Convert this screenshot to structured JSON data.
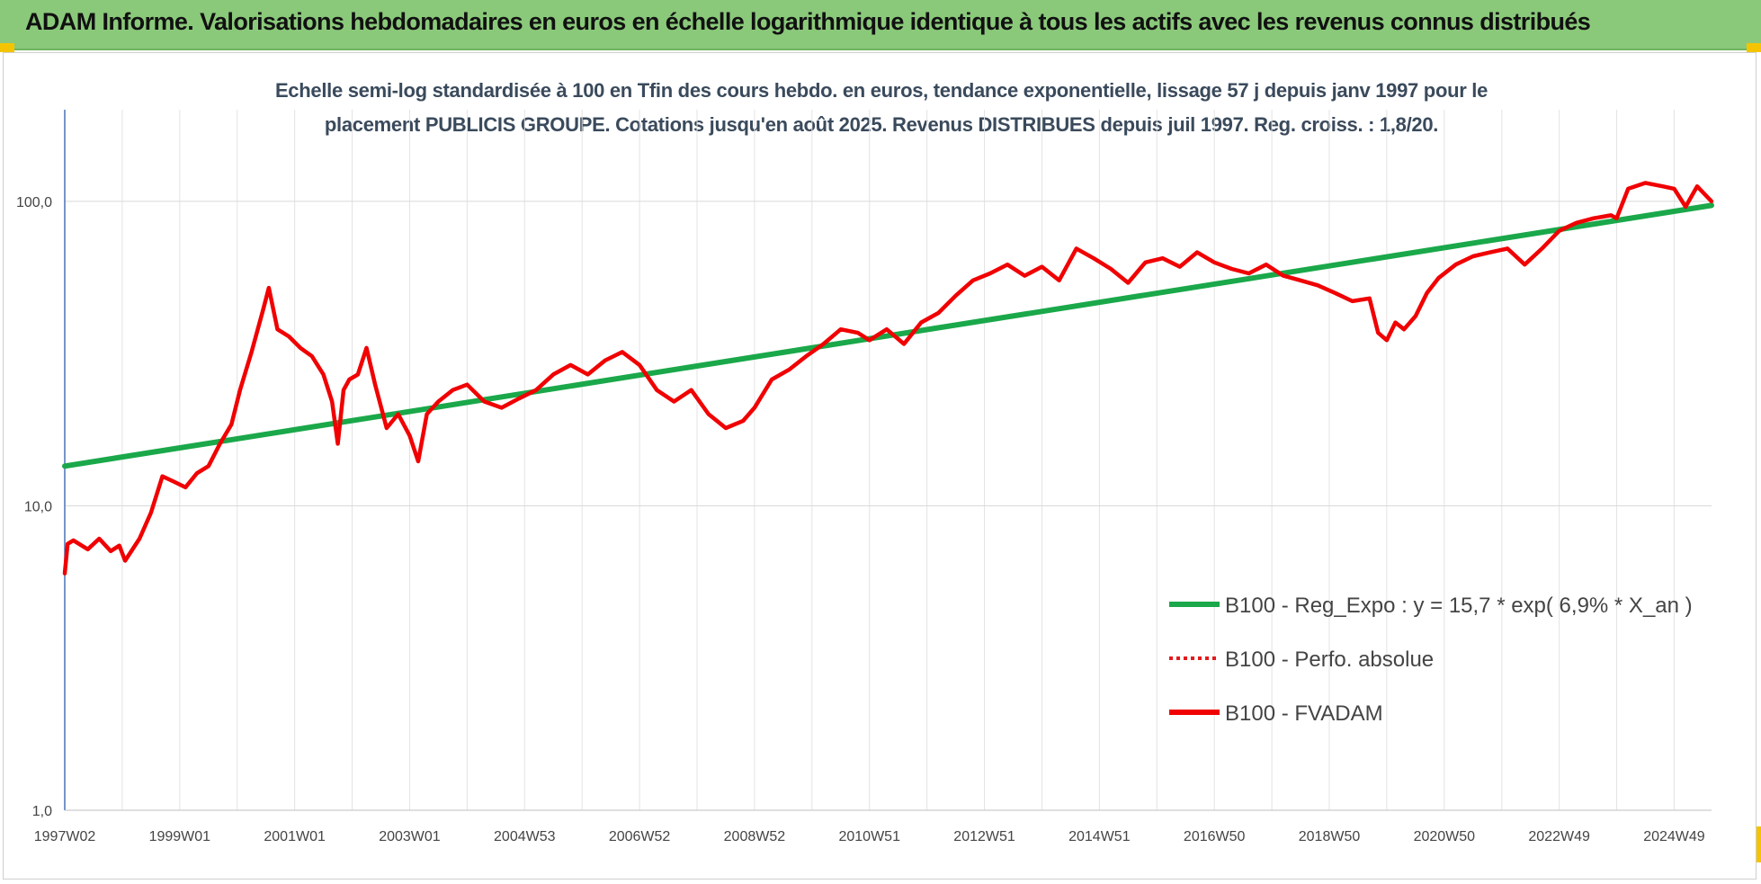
{
  "header": {
    "title": "ADAM Informe. Valorisations hebdomadaires en euros en échelle logarithmique identique à tous les actifs avec les revenus connus distribués"
  },
  "chart_data": {
    "type": "line",
    "title_line1": "Echelle semi-log standardisée à 100 en Tfin des cours hebdo. en euros, tendance exponentielle, lissage 57 j depuis janv 1997 pour le",
    "title_line2": "placement PUBLICIS GROUPE. Cotations jusqu'en août 2025. Revenus DISTRIBUES depuis juil 1997. Reg. croiss. : 1,8/20.",
    "y_scale": "log",
    "ylim": [
      1,
      200
    ],
    "y_ticks": [
      "1,0",
      "10,0",
      "100,0"
    ],
    "y_tick_values": [
      1,
      10,
      100
    ],
    "x_range": [
      1997.0,
      2025.65
    ],
    "x_ticks": [
      "1997W02",
      "1999W01",
      "2001W01",
      "2003W01",
      "2004W53",
      "2006W52",
      "2008W52",
      "2010W51",
      "2012W51",
      "2014W51",
      "2016W50",
      "2018W50",
      "2020W50",
      "2022W49",
      "2024W49"
    ],
    "x_tick_years": [
      1997.0,
      1999.0,
      2001.0,
      2003.0,
      2005.0,
      2007.0,
      2009.0,
      2011.0,
      2013.0,
      2015.0,
      2017.0,
      2019.0,
      2021.0,
      2023.0,
      2025.0
    ],
    "grid": true,
    "legend_position": "right",
    "series": [
      {
        "name": "B100 - Reg_Expo : y = 15,7 * exp( 6,9% *  X_an )",
        "color": "#1aa84a",
        "style": "solid",
        "x": [
          1997.0,
          2025.65
        ],
        "y": [
          13.5,
          97
        ]
      },
      {
        "name": "B100 - Perfo. absolue",
        "color": "#e41a1c",
        "style": "dotted",
        "x": [],
        "y": []
      },
      {
        "name": "B100 - FVADAM",
        "color": "#f00000",
        "style": "solid",
        "x": [
          1997.0,
          1997.05,
          1997.15,
          1997.4,
          1997.6,
          1997.8,
          1997.95,
          1998.05,
          1998.3,
          1998.5,
          1998.7,
          1998.9,
          1999.1,
          1999.3,
          1999.5,
          1999.7,
          1999.9,
          2000.05,
          2000.25,
          2000.45,
          2000.55,
          2000.7,
          2000.9,
          2001.1,
          2001.3,
          2001.5,
          2001.65,
          2001.75,
          2001.85,
          2001.95,
          2002.1,
          2002.25,
          2002.4,
          2002.6,
          2002.8,
          2003.0,
          2003.15,
          2003.3,
          2003.5,
          2003.75,
          2004.0,
          2004.3,
          2004.6,
          2004.9,
          2005.2,
          2005.5,
          2005.8,
          2006.1,
          2006.4,
          2006.7,
          2007.0,
          2007.3,
          2007.6,
          2007.9,
          2008.2,
          2008.5,
          2008.8,
          2009.0,
          2009.3,
          2009.6,
          2009.9,
          2010.2,
          2010.5,
          2010.8,
          2011.0,
          2011.3,
          2011.6,
          2011.9,
          2012.2,
          2012.5,
          2012.8,
          2013.1,
          2013.4,
          2013.7,
          2014.0,
          2014.3,
          2014.6,
          2014.9,
          2015.2,
          2015.5,
          2015.8,
          2016.1,
          2016.4,
          2016.7,
          2017.0,
          2017.3,
          2017.6,
          2017.9,
          2018.2,
          2018.5,
          2018.8,
          2019.1,
          2019.4,
          2019.7,
          2019.85,
          2020.0,
          2020.15,
          2020.3,
          2020.5,
          2020.7,
          2020.9,
          2021.2,
          2021.5,
          2021.8,
          2022.1,
          2022.4,
          2022.7,
          2023.0,
          2023.3,
          2023.6,
          2023.9,
          2024.0,
          2024.2,
          2024.5,
          2024.8,
          2025.0,
          2025.2,
          2025.4,
          2025.65
        ],
        "y": [
          6.0,
          7.5,
          7.7,
          7.2,
          7.8,
          7.1,
          7.4,
          6.6,
          7.8,
          9.5,
          12.5,
          12.0,
          11.5,
          12.8,
          13.5,
          16.0,
          18.5,
          24.0,
          32.0,
          44.0,
          52.0,
          38.0,
          36.0,
          33.0,
          31.0,
          27.0,
          22.0,
          16.0,
          24.0,
          26.0,
          27.0,
          33.0,
          25.0,
          18.0,
          20.0,
          17.0,
          14.0,
          20.0,
          22.0,
          24.0,
          25.0,
          22.0,
          21.0,
          22.5,
          24.0,
          27.0,
          29.0,
          27.0,
          30.0,
          32.0,
          29.0,
          24.0,
          22.0,
          24.0,
          20.0,
          18.0,
          19.0,
          21.0,
          26.0,
          28.0,
          31.0,
          34.0,
          38.0,
          37.0,
          35.0,
          38.0,
          34.0,
          40.0,
          43.0,
          49.0,
          55.0,
          58.0,
          62.0,
          57.0,
          61.0,
          55.0,
          70.0,
          65.0,
          60.0,
          54.0,
          63.0,
          65.0,
          61.0,
          68.0,
          63.0,
          60.0,
          58.0,
          62.0,
          57.0,
          55.0,
          53.0,
          50.0,
          47.0,
          48.0,
          37.0,
          35.0,
          40.0,
          38.0,
          42.0,
          50.0,
          56.0,
          62.0,
          66.0,
          68.0,
          70.0,
          62.0,
          70.0,
          80.0,
          85.0,
          88.0,
          90.0,
          88.0,
          110.0,
          115.0,
          112.0,
          110.0,
          96.0,
          112.0,
          100.0
        ]
      }
    ]
  }
}
